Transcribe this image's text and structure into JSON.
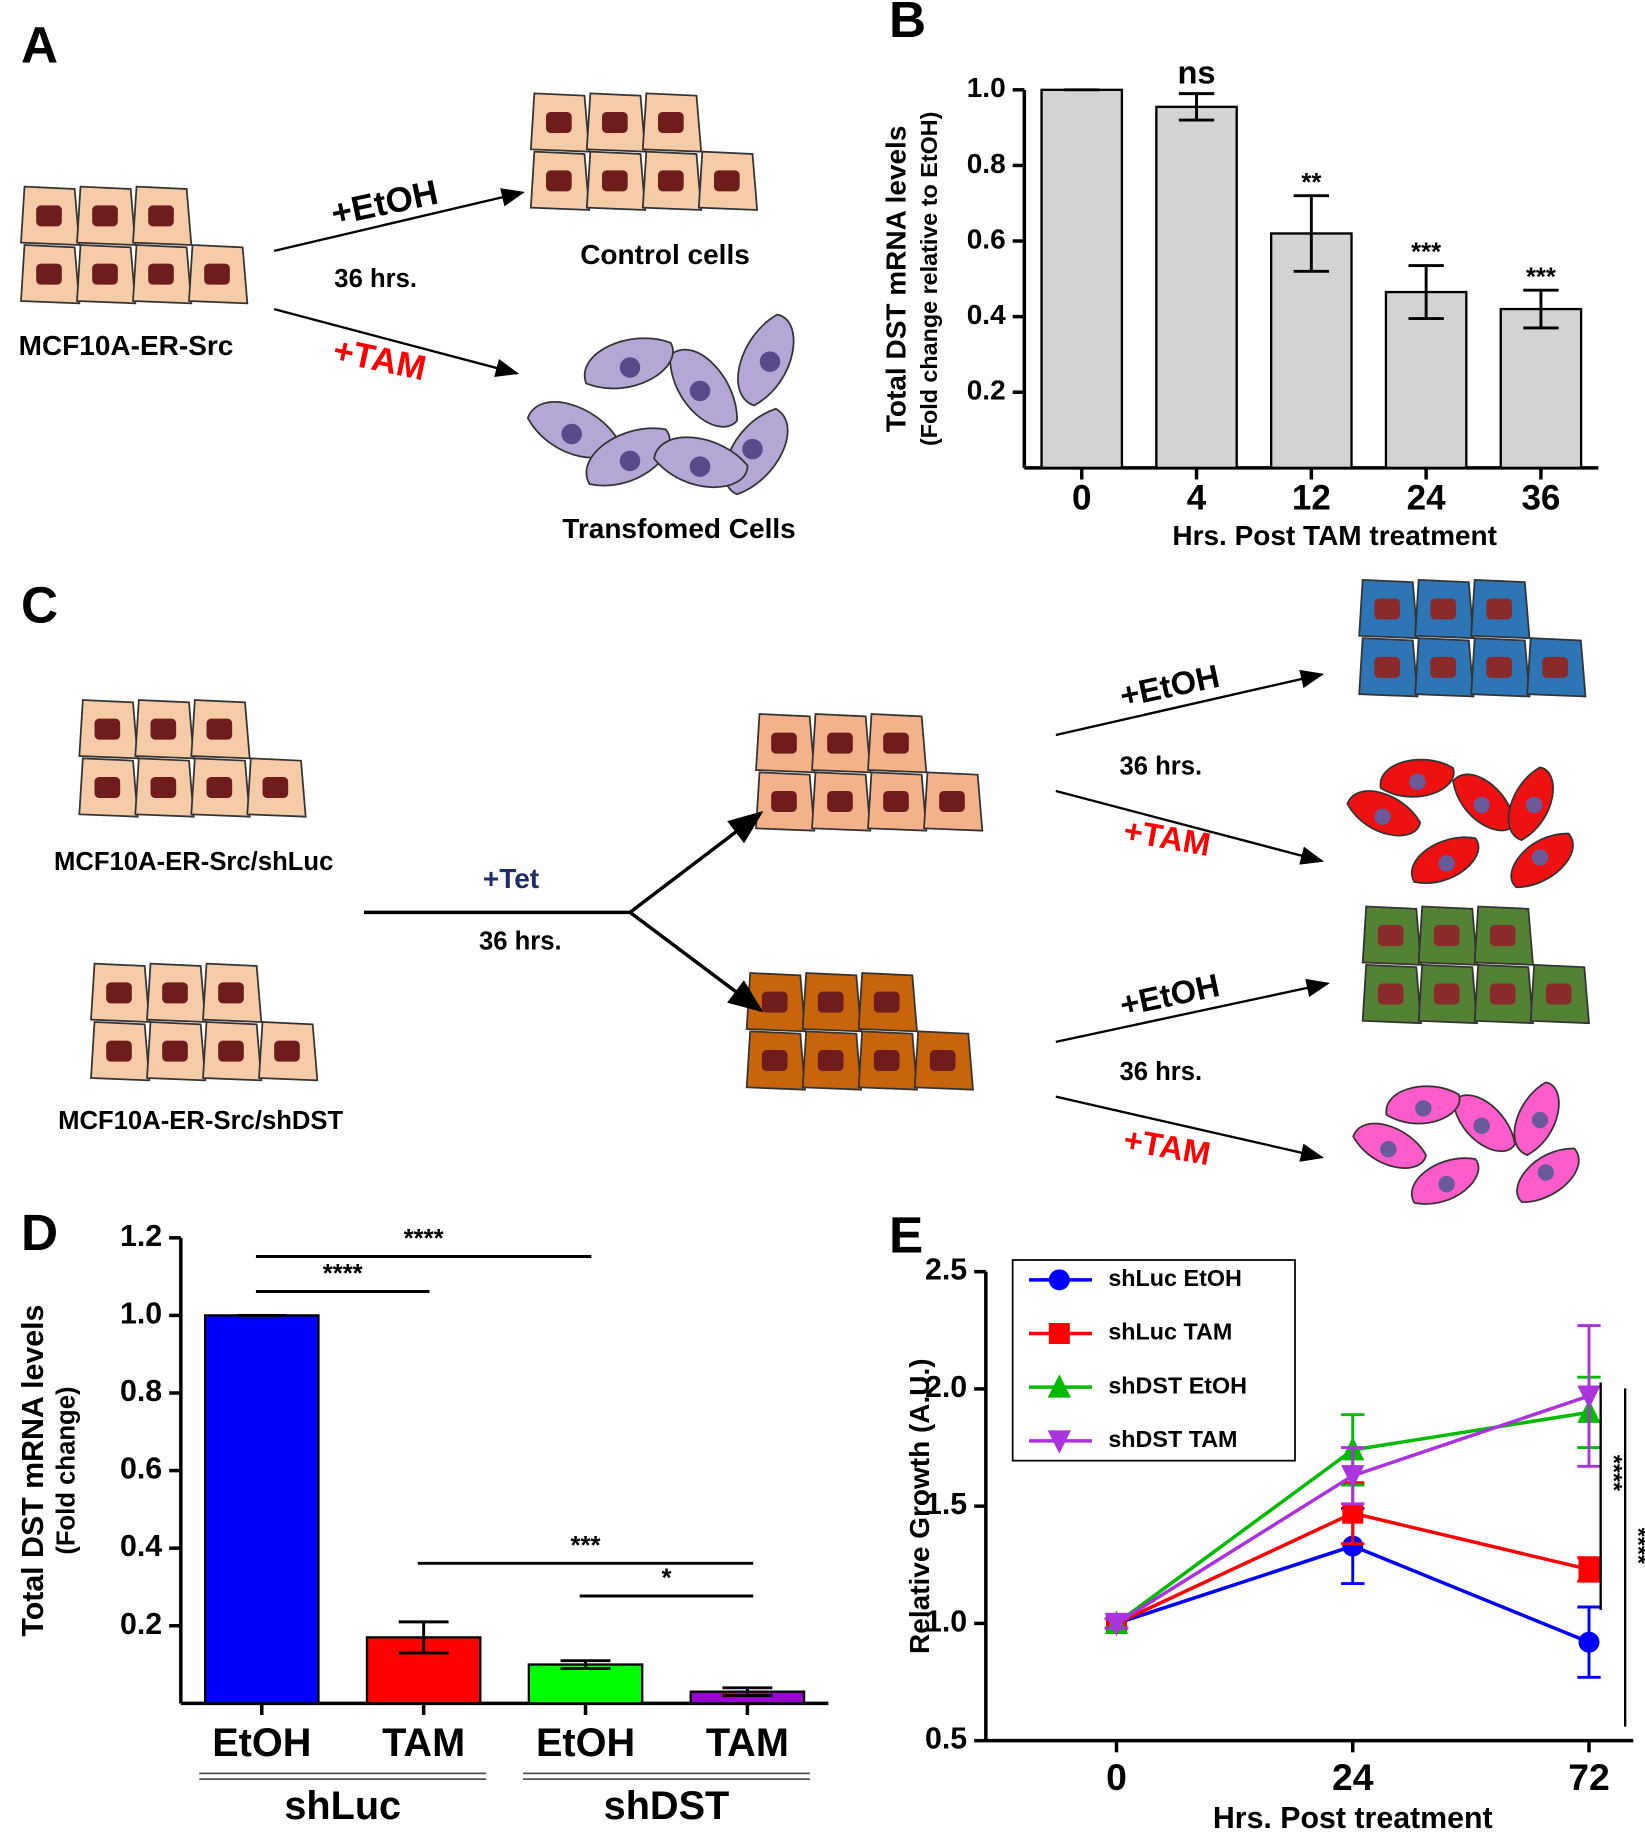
{
  "panel_labels": [
    "A",
    "B",
    "C",
    "D",
    "E"
  ],
  "diagram_a": {
    "source": "MCF10A-ER-Src",
    "top_treatment": "+EtOH",
    "duration": "36 hrs.",
    "bottom_treatment": "+TAM",
    "top_result": "Control cells",
    "bottom_result": "Transfomed Cells"
  },
  "diagram_c": {
    "line_1": "MCF10A-ER-Src/shLuc",
    "line_2": "MCF10A-ER-Src/shDST",
    "induction": "+Tet",
    "induction_duration": "36 hrs.",
    "upper": {
      "top_treatment": "+EtOH",
      "duration": "36 hrs.",
      "bottom_treatment": "+TAM"
    },
    "lower": {
      "top_treatment": "+EtOH",
      "duration": "36 hrs.",
      "bottom_treatment": "+TAM"
    }
  },
  "chart_data": [
    {
      "type": "bar",
      "categories": [
        "0",
        "4",
        "12",
        "24",
        "36"
      ],
      "values": [
        1,
        0.955,
        0.62,
        0.465,
        0.42
      ],
      "errors": [
        0,
        0.035,
        0.1,
        0.07,
        0.05
      ],
      "annotations": [
        null,
        "ns",
        "**",
        "***",
        "***"
      ],
      "color": "#d3d3d3",
      "ylim": [
        0,
        1
      ],
      "yticks": [
        0.2,
        0.4,
        0.6,
        0.8,
        {
          "value": 1,
          "label": "1.0"
        }
      ],
      "ylabel": "Total DST mRNA levels",
      "ylabel_sub": "(Fold change relative to EtOH)",
      "xlabel": "Hrs. Post TAM treatment"
    },
    {
      "type": "bar",
      "categories": [
        "EtOH",
        "TAM",
        "EtOH",
        "TAM"
      ],
      "groups": [
        "shLuc",
        "shDST"
      ],
      "values": [
        1,
        0.17,
        0.1,
        0.03
      ],
      "errors": [
        0,
        0.04,
        0.01,
        0.01
      ],
      "colors": [
        "#0000ff",
        "#ff0000",
        "#00ff00",
        "#9900cc"
      ],
      "ylim": [
        0,
        1.2
      ],
      "yticks": [
        0.2,
        0.4,
        0.6,
        0.8,
        {
          "value": 1,
          "label": "1.0"
        },
        1.2
      ],
      "ylabel": "Total DST mRNA levels",
      "ylabel_sub": "(Fold change)",
      "comparisons": [
        {
          "categories": [
            0,
            2
          ],
          "label": "****"
        },
        {
          "categories": [
            0,
            1
          ],
          "label": "****"
        },
        {
          "categories": [
            1,
            3
          ],
          "label": "***"
        },
        {
          "categories": [
            2,
            3
          ],
          "label": "*"
        }
      ]
    },
    {
      "type": "line",
      "categories": [
        "0",
        "24",
        "72"
      ],
      "ylim": [
        0.5,
        2.5
      ],
      "yticks": [
        0.5,
        {
          "value": 1,
          "label": "1.0"
        },
        1.5,
        {
          "value": 2,
          "label": "2.0"
        },
        2.5
      ],
      "ylabel": "Relative Growth (A.U.)",
      "xlabel": "Hrs. Post treatment",
      "legend": "upper left",
      "series": [
        {
          "name": "shLuc EtOH",
          "color": "#0000ff",
          "marker": "circle",
          "values": [
            1,
            1.33,
            0.92
          ],
          "errors": [
            0.02,
            0.16,
            0.15
          ]
        },
        {
          "name": "shLuc TAM",
          "color": "#ff0000",
          "marker": "square",
          "values": [
            1,
            1.47,
            1.23
          ],
          "errors": [
            0.02,
            0.13,
            0.05
          ]
        },
        {
          "name": "shDST EtOH",
          "color": "#00bb00",
          "marker": "triangle-up",
          "values": [
            1,
            1.74,
            1.9
          ],
          "errors": [
            0.02,
            0.15,
            0.15
          ]
        },
        {
          "name": "shDST TAM",
          "color": "#aa33dd",
          "marker": "triangle-down",
          "values": [
            1,
            1.63,
            1.97
          ],
          "errors": [
            0.02,
            0.12,
            0.3
          ]
        }
      ],
      "significance": [
        "****",
        "****"
      ]
    }
  ]
}
